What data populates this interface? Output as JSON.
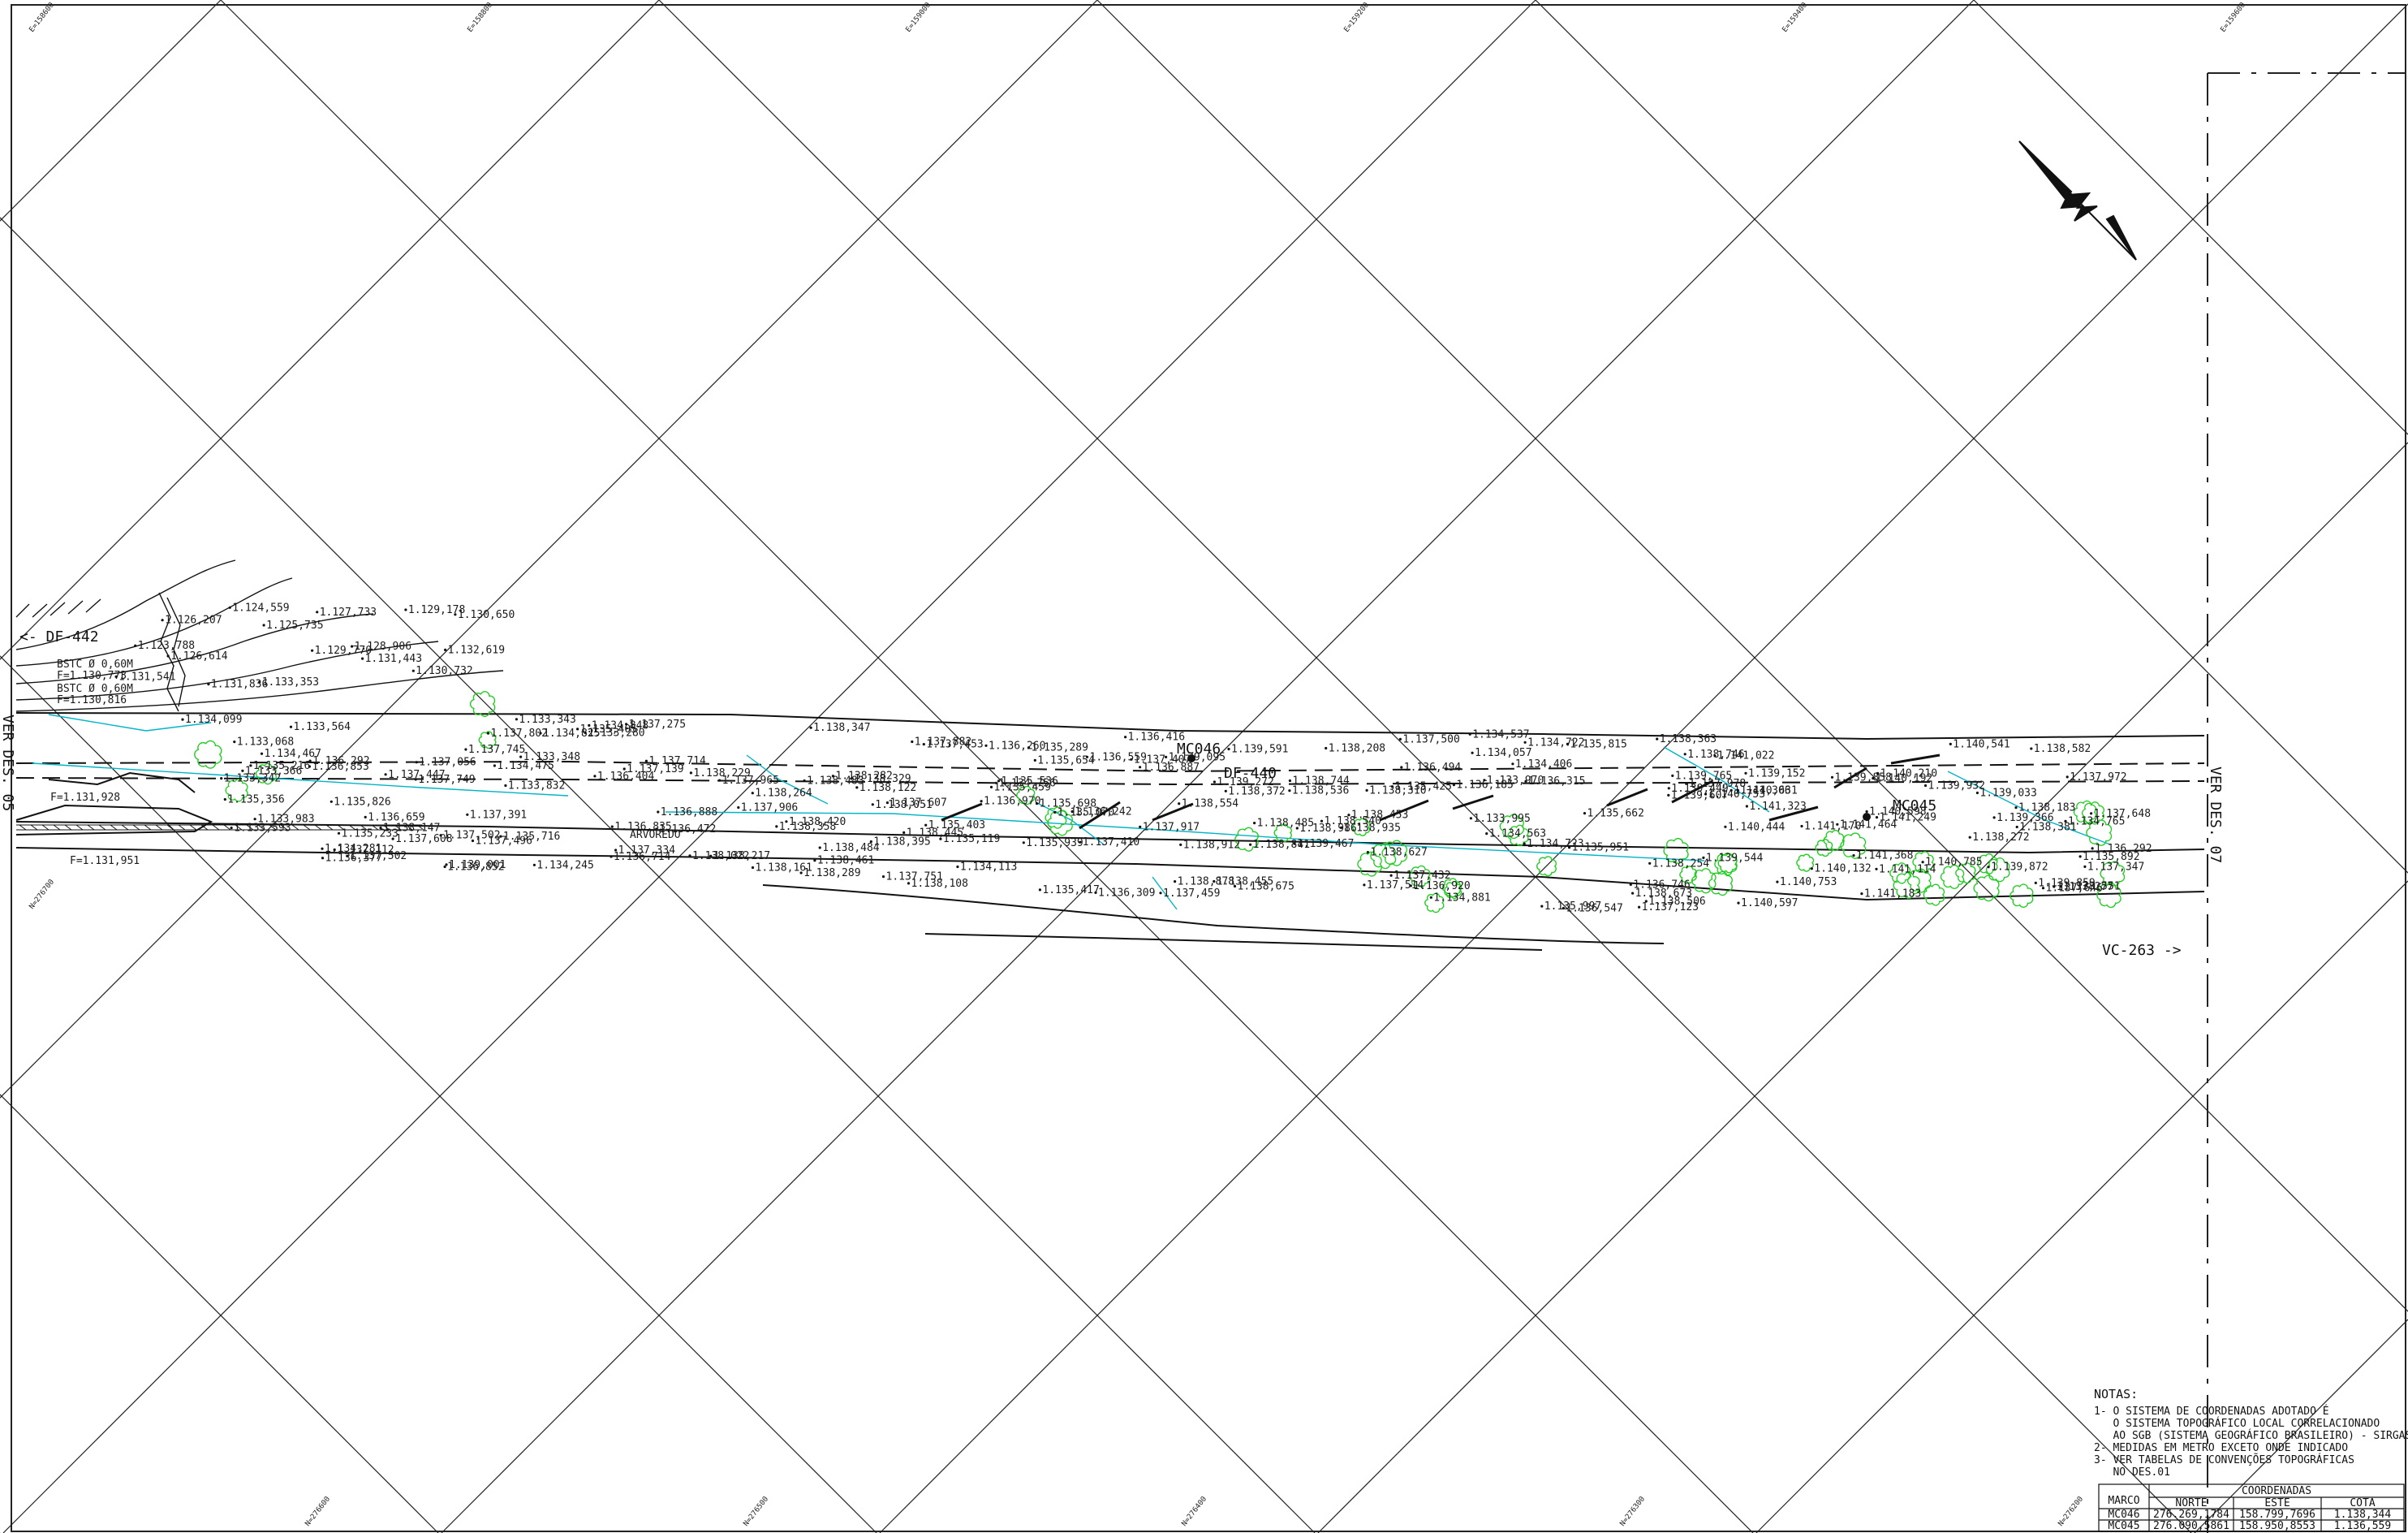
{
  "callouts": {
    "left_ref": "<- DF-442",
    "right_ref": "VC-263 ->",
    "left_sheet": "VER DES. 05",
    "right_sheet": "VER DES. 07",
    "road_mid": "DF-440",
    "vegetation": "ARVOREDO"
  },
  "culverts": [
    "BSTC Ø 0,60M",
    "F=1.130,773",
    "BSTC Ø 0,60M",
    "F=1.130,816",
    "F=1.131,928",
    "F=1.131,951"
  ],
  "markers": [
    {
      "id": "MC046",
      "label": "MC046"
    },
    {
      "id": "MC045",
      "label": "MC045"
    }
  ],
  "grid_labels": {
    "e": [
      "E=158600",
      "E=158800",
      "E=159000",
      "E=159200",
      "E=159400",
      "E=159600"
    ],
    "n": [
      "N=276700",
      "N=276600",
      "N=276500",
      "N=276400",
      "N=276300",
      "N=276200"
    ]
  },
  "elevations": [
    "1.123,788",
    "1.126,207",
    "1.124,559",
    "1.125,735",
    "1.127,733",
    "1.128,906",
    "1.129,178",
    "1.130,650",
    "1.131,541",
    "1.126,614",
    "1.131,836",
    "1.133,353",
    "1.129,770",
    "1.131,443",
    "1.130,732",
    "1.132,619",
    "1.134,099",
    "1.135,216",
    "1.135,356",
    "1.134,467",
    "1.133,342",
    "1.133,593",
    "1.133,366",
    "1.133,068",
    "1.133,564",
    "1.133,983",
    "1.134,281",
    "1.135,233",
    "1.135,826",
    "1.136,377",
    "1.136,292",
    "1.136,853",
    "1.136,659",
    "1.137,112",
    "1.137,056",
    "1.137,447",
    "1.137,502",
    "1.137,608",
    "1.137,749",
    "1.138,147",
    "1.137,745",
    "1.137,802",
    "1.137,391",
    "1.137,496",
    "1.137,502",
    "1.136,852",
    "1.139,001",
    "1.135,716",
    "1.134,825",
    "1.133,343",
    "1.133,832",
    "1.134,475",
    "1.133,348",
    "1.133,280",
    "1.134,245",
    "1.134,848",
    "1.135,405",
    "1.136,404",
    "1.136,472",
    "1.136,835",
    "1.136,714",
    "1.136,888",
    "1.137,139",
    "1.137,334",
    "1.137,275",
    "1.137,714",
    "1.137,906",
    "1.138,229",
    "1.138,217",
    "1.137,965",
    "1.138,022",
    "1.138,264",
    "1.138,420",
    "1.138,161",
    "1.138,483",
    "1.138,358",
    "1.138,461",
    "1.138,289",
    "1.138,484",
    "1.138,347",
    "1.138,051",
    "1.138,329",
    "1.138,395",
    "1.138,122",
    "1.138,445",
    "1.138,282",
    "1.137,751",
    "1.137,882",
    "1.137,453",
    "1.137,607",
    "1.138,108",
    "1.136,970",
    "1.135,536",
    "1.135,403",
    "1.135,119",
    "1.134,113",
    "1.134,756",
    "1.135,289",
    "1.135,459",
    "1.135,070",
    "1.136,260",
    "1.135,654",
    "1.135,698",
    "1.135,417",
    "1.135,939",
    "1.136,242",
    "1.136,416",
    "1.136,559",
    "1.136,309",
    "1.137,410",
    "1.137,459",
    "1.136,887",
    "1.137,407",
    "1.138,554",
    "1.137,917",
    "1.138,455",
    "1.138,878",
    "1.138,372",
    "1.139,095",
    "1.138,912",
    "1.138,675",
    "1.139,272",
    "1.139,591",
    "1.138,986",
    "1.139,467",
    "1.138,485",
    "1.138,841",
    "1.138,935",
    "1.138,744",
    "1.138,540",
    "1.138,536",
    "1.138,627",
    "1.138,453",
    "1.138,310",
    "1.138,208",
    "1.137,514",
    "1.136,920",
    "1.137,432",
    "1.137,500",
    "1.136,185",
    "1.136,494",
    "1.135,425",
    "1.134,881",
    "1.134,563",
    "1.134,537",
    "1.134,057",
    "1.133,970",
    "1.133,995",
    "1.134,406",
    "1.134,723",
    "1.134,722",
    "1.135,662",
    "1.135,997",
    "1.135,815",
    "1.136,315",
    "1.135,951",
    "1.136,746",
    "1.136,547",
    "1.137,123",
    "1.138,254",
    "1.138,673",
    "1.137,978",
    "1.138,363",
    "1.139,607",
    "1.138,506",
    "1.138,746",
    "1.139,544",
    "1.139,152",
    "1.139,449",
    "1.139,765",
    "1.140,444",
    "1.140,597",
    "1.140,753",
    "1.141,022",
    "1.141,306",
    "1.140,631",
    "1.141,323",
    "1.140,753",
    "1.141,170",
    "1.141,368",
    "1.140,132",
    "1.139,858",
    "1.140,192",
    "1.140,598",
    "1.141,183",
    "1.141,464",
    "1.140,210",
    "1.140,785",
    "1.141,114",
    "1.141,249",
    "1.140,541",
    "1.139,932",
    "1.139,366",
    "1.139,033",
    "1.138,381",
    "1.138,272",
    "1.139,859",
    "1.139,872",
    "1.138,582",
    "1.138,551",
    "1.137,972",
    "1.138,183",
    "1.137,347",
    "1.137,648",
    "1.137,277",
    "1.137,646",
    "1.136,292",
    "1.135,892",
    "1.134,765"
  ],
  "notes": {
    "title": "NOTAS:",
    "lines": [
      "1- O SISTEMA DE COORDENADAS ADOTADO É",
      "   O SISTEMA TOPOGRÁFICO LOCAL CORRELACIONADO",
      "   AO SGB (SISTEMA GEOGRÁFICO BRASILEIRO) - SIRGAS 2000",
      "2- MEDIDAS EM METRO EXCETO ONDE INDICADO",
      "3- VER TABELAS DE CONVENÇÕES TOPOGRÁFICAS",
      "   NO DES.01"
    ]
  },
  "coord_table": {
    "col_marco": "MARCO",
    "group": "COORDENADAS",
    "headers": [
      "NORTE",
      "ESTE",
      "COTA"
    ],
    "rows": [
      {
        "marco": "MC046",
        "norte": "276.269,1784",
        "este": "158.799,7696",
        "cota": "1.138,344"
      },
      {
        "marco": "MC045",
        "norte": "276.090,5861",
        "este": "158.950,8553",
        "cota": "1.136,559"
      }
    ]
  },
  "colors": {
    "linework": "#111111",
    "hydro": "#00b4c8",
    "vegetation": "#22cc22",
    "background": "#ffffff"
  }
}
